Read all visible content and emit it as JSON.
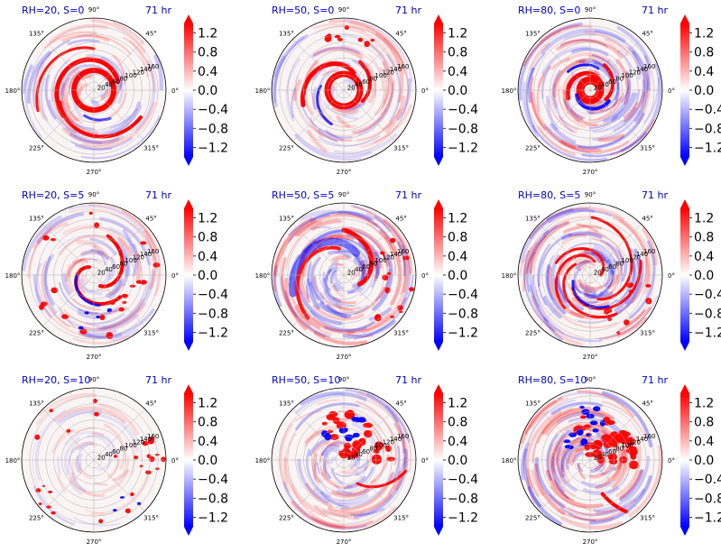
{
  "chart_data": {
    "type": "heatmap",
    "colormap": "bwr",
    "colormap_colors": {
      "negative": "#0000ff",
      "zero": "#ffffff",
      "positive": "#ff0000"
    },
    "title_color": "#0000cc",
    "color_range": [
      -1.4,
      1.4
    ],
    "colorbar_ticks": [
      "1.2",
      "0.8",
      "0.4",
      "0.0",
      "−0.4",
      "−0.8",
      "−1.2"
    ],
    "colorbar_extend": "both",
    "angle_labels": [
      "90°",
      "45°",
      "0°",
      "315°",
      "270°",
      "225°",
      "180°",
      "135°"
    ],
    "radial_ticks": [
      "20",
      "40",
      "60",
      "80",
      "100",
      "120",
      "140",
      "160"
    ],
    "radial_max": 180,
    "panels": [
      {
        "title": "RH=20, S=0",
        "time": "71 hr",
        "pattern": "ring-tight"
      },
      {
        "title": "RH=50, S=0",
        "time": "71 hr",
        "pattern": "ring-spiral"
      },
      {
        "title": "RH=80, S=0",
        "time": "71 hr",
        "pattern": "ring-core"
      },
      {
        "title": "RH=20, S=5",
        "time": "71 hr",
        "pattern": "spiral-bands"
      },
      {
        "title": "RH=50, S=5",
        "time": "71 hr",
        "pattern": "spiral-broad"
      },
      {
        "title": "RH=80, S=5",
        "time": "71 hr",
        "pattern": "spiral-multi"
      },
      {
        "title": "RH=20, S=10",
        "time": "71 hr",
        "pattern": "scattered"
      },
      {
        "title": "RH=50, S=10",
        "time": "71 hr",
        "pattern": "asymmetric-ne"
      },
      {
        "title": "RH=80, S=10",
        "time": "71 hr",
        "pattern": "asymmetric-ne-strong"
      }
    ]
  }
}
